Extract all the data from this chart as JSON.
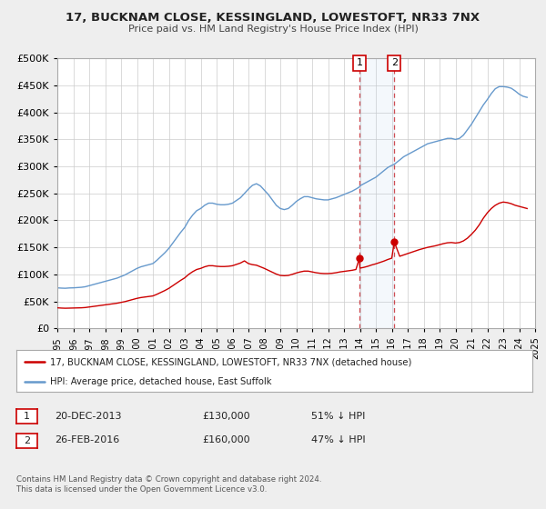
{
  "title": "17, BUCKNAM CLOSE, KESSINGLAND, LOWESTOFT, NR33 7NX",
  "subtitle": "Price paid vs. HM Land Registry's House Price Index (HPI)",
  "legend_line1": "17, BUCKNAM CLOSE, KESSINGLAND, LOWESTOFT, NR33 7NX (detached house)",
  "legend_line2": "HPI: Average price, detached house, East Suffolk",
  "sale1_date": "20-DEC-2013",
  "sale1_price": "£130,000",
  "sale1_hpi": "51% ↓ HPI",
  "sale1_x": 2013.97,
  "sale1_y_red": 130000,
  "sale2_date": "26-FEB-2016",
  "sale2_price": "£160,000",
  "sale2_hpi": "47% ↓ HPI",
  "sale2_x": 2016.16,
  "sale2_y_red": 160000,
  "xlim": [
    1995,
    2025
  ],
  "ylim": [
    0,
    500000
  ],
  "yticks": [
    0,
    50000,
    100000,
    150000,
    200000,
    250000,
    300000,
    350000,
    400000,
    450000,
    500000
  ],
  "xticks": [
    1995,
    1996,
    1997,
    1998,
    1999,
    2000,
    2001,
    2002,
    2003,
    2004,
    2005,
    2006,
    2007,
    2008,
    2009,
    2010,
    2011,
    2012,
    2013,
    2014,
    2015,
    2016,
    2017,
    2018,
    2019,
    2020,
    2021,
    2022,
    2023,
    2024,
    2025
  ],
  "red_color": "#cc0000",
  "blue_color": "#6699cc",
  "shade_color": "#aaccee",
  "background_color": "#eeeeee",
  "plot_bg_color": "#ffffff",
  "grid_color": "#cccccc",
  "border_color": "#aaaaaa",
  "copyright_text": "Contains HM Land Registry data © Crown copyright and database right 2024.\nThis data is licensed under the Open Government Licence v3.0.",
  "hpi_blue": [
    [
      1995.0,
      75000
    ],
    [
      1995.25,
      74500
    ],
    [
      1995.5,
      74200
    ],
    [
      1995.75,
      74800
    ],
    [
      1996.0,
      75000
    ],
    [
      1996.25,
      75500
    ],
    [
      1996.5,
      76000
    ],
    [
      1996.75,
      77000
    ],
    [
      1997.0,
      79000
    ],
    [
      1997.25,
      81000
    ],
    [
      1997.5,
      83000
    ],
    [
      1997.75,
      85000
    ],
    [
      1998.0,
      87000
    ],
    [
      1998.25,
      89000
    ],
    [
      1998.5,
      91000
    ],
    [
      1998.75,
      93000
    ],
    [
      1999.0,
      96000
    ],
    [
      1999.25,
      99000
    ],
    [
      1999.5,
      103000
    ],
    [
      1999.75,
      107000
    ],
    [
      2000.0,
      111000
    ],
    [
      2000.25,
      114000
    ],
    [
      2000.5,
      116000
    ],
    [
      2000.75,
      118000
    ],
    [
      2001.0,
      120000
    ],
    [
      2001.25,
      126000
    ],
    [
      2001.5,
      133000
    ],
    [
      2001.75,
      140000
    ],
    [
      2002.0,
      148000
    ],
    [
      2002.25,
      158000
    ],
    [
      2002.5,
      168000
    ],
    [
      2002.75,
      178000
    ],
    [
      2003.0,
      187000
    ],
    [
      2003.25,
      200000
    ],
    [
      2003.5,
      210000
    ],
    [
      2003.75,
      218000
    ],
    [
      2004.0,
      222000
    ],
    [
      2004.25,
      228000
    ],
    [
      2004.5,
      232000
    ],
    [
      2004.75,
      232000
    ],
    [
      2005.0,
      230000
    ],
    [
      2005.25,
      229000
    ],
    [
      2005.5,
      229000
    ],
    [
      2005.75,
      230000
    ],
    [
      2006.0,
      232000
    ],
    [
      2006.25,
      237000
    ],
    [
      2006.5,
      242000
    ],
    [
      2006.75,
      250000
    ],
    [
      2007.0,
      258000
    ],
    [
      2007.25,
      265000
    ],
    [
      2007.5,
      268000
    ],
    [
      2007.75,
      264000
    ],
    [
      2008.0,
      256000
    ],
    [
      2008.25,
      248000
    ],
    [
      2008.5,
      238000
    ],
    [
      2008.75,
      228000
    ],
    [
      2009.0,
      222000
    ],
    [
      2009.25,
      220000
    ],
    [
      2009.5,
      222000
    ],
    [
      2009.75,
      228000
    ],
    [
      2010.0,
      235000
    ],
    [
      2010.25,
      240000
    ],
    [
      2010.5,
      244000
    ],
    [
      2010.75,
      244000
    ],
    [
      2011.0,
      242000
    ],
    [
      2011.25,
      240000
    ],
    [
      2011.5,
      239000
    ],
    [
      2011.75,
      238000
    ],
    [
      2012.0,
      238000
    ],
    [
      2012.25,
      240000
    ],
    [
      2012.5,
      242000
    ],
    [
      2012.75,
      245000
    ],
    [
      2013.0,
      248000
    ],
    [
      2013.25,
      251000
    ],
    [
      2013.5,
      254000
    ],
    [
      2013.75,
      258000
    ],
    [
      2013.97,
      262000
    ],
    [
      2014.0,
      264000
    ],
    [
      2014.25,
      268000
    ],
    [
      2014.5,
      272000
    ],
    [
      2014.75,
      276000
    ],
    [
      2015.0,
      280000
    ],
    [
      2015.25,
      286000
    ],
    [
      2015.5,
      292000
    ],
    [
      2015.75,
      298000
    ],
    [
      2016.0,
      302000
    ],
    [
      2016.16,
      304000
    ],
    [
      2016.5,
      312000
    ],
    [
      2016.75,
      318000
    ],
    [
      2017.0,
      322000
    ],
    [
      2017.25,
      326000
    ],
    [
      2017.5,
      330000
    ],
    [
      2017.75,
      334000
    ],
    [
      2018.0,
      338000
    ],
    [
      2018.25,
      342000
    ],
    [
      2018.5,
      344000
    ],
    [
      2018.75,
      346000
    ],
    [
      2019.0,
      348000
    ],
    [
      2019.25,
      350000
    ],
    [
      2019.5,
      352000
    ],
    [
      2019.75,
      352000
    ],
    [
      2020.0,
      350000
    ],
    [
      2020.25,
      352000
    ],
    [
      2020.5,
      358000
    ],
    [
      2020.75,
      368000
    ],
    [
      2021.0,
      378000
    ],
    [
      2021.25,
      390000
    ],
    [
      2021.5,
      402000
    ],
    [
      2021.75,
      414000
    ],
    [
      2022.0,
      424000
    ],
    [
      2022.25,
      435000
    ],
    [
      2022.5,
      444000
    ],
    [
      2022.75,
      448000
    ],
    [
      2023.0,
      448000
    ],
    [
      2023.25,
      447000
    ],
    [
      2023.5,
      445000
    ],
    [
      2023.75,
      440000
    ],
    [
      2024.0,
      434000
    ],
    [
      2024.25,
      430000
    ],
    [
      2024.5,
      428000
    ]
  ],
  "red_hpi": [
    [
      1995.0,
      38000
    ],
    [
      1995.25,
      37500
    ],
    [
      1995.5,
      37200
    ],
    [
      1995.75,
      37400
    ],
    [
      1996.0,
      37600
    ],
    [
      1996.25,
      37800
    ],
    [
      1996.5,
      38000
    ],
    [
      1996.75,
      38500
    ],
    [
      1997.0,
      39500
    ],
    [
      1997.25,
      40500
    ],
    [
      1997.5,
      41500
    ],
    [
      1997.75,
      42500
    ],
    [
      1998.0,
      43500
    ],
    [
      1998.25,
      44500
    ],
    [
      1998.5,
      45500
    ],
    [
      1998.75,
      46500
    ],
    [
      1999.0,
      48000
    ],
    [
      1999.25,
      49500
    ],
    [
      1999.5,
      51500
    ],
    [
      1999.75,
      53500
    ],
    [
      2000.0,
      55500
    ],
    [
      2000.25,
      57000
    ],
    [
      2000.5,
      58000
    ],
    [
      2000.75,
      59000
    ],
    [
      2001.0,
      60000
    ],
    [
      2001.25,
      63000
    ],
    [
      2001.5,
      66500
    ],
    [
      2001.75,
      70000
    ],
    [
      2002.0,
      74000
    ],
    [
      2002.25,
      79000
    ],
    [
      2002.5,
      84000
    ],
    [
      2002.75,
      89000
    ],
    [
      2003.0,
      93500
    ],
    [
      2003.25,
      100000
    ],
    [
      2003.5,
      105000
    ],
    [
      2003.75,
      109000
    ],
    [
      2004.0,
      111000
    ],
    [
      2004.25,
      114000
    ],
    [
      2004.5,
      116000
    ],
    [
      2004.75,
      116000
    ],
    [
      2005.0,
      115000
    ],
    [
      2005.25,
      114500
    ],
    [
      2005.5,
      114500
    ],
    [
      2005.75,
      115000
    ],
    [
      2006.0,
      116000
    ],
    [
      2006.25,
      118500
    ],
    [
      2006.5,
      121000
    ],
    [
      2006.75,
      125000
    ],
    [
      2007.0,
      120000
    ],
    [
      2007.25,
      118000
    ],
    [
      2007.5,
      117000
    ],
    [
      2007.75,
      114000
    ],
    [
      2008.0,
      111000
    ],
    [
      2008.25,
      107500
    ],
    [
      2008.5,
      104000
    ],
    [
      2008.75,
      100500
    ],
    [
      2009.0,
      98000
    ],
    [
      2009.25,
      97500
    ],
    [
      2009.5,
      98000
    ],
    [
      2009.75,
      100000
    ],
    [
      2010.0,
      102500
    ],
    [
      2010.25,
      104500
    ],
    [
      2010.5,
      106000
    ],
    [
      2010.75,
      106000
    ],
    [
      2011.0,
      104500
    ],
    [
      2011.25,
      103000
    ],
    [
      2011.5,
      102000
    ],
    [
      2011.75,
      101500
    ],
    [
      2012.0,
      101500
    ],
    [
      2012.25,
      102000
    ],
    [
      2012.5,
      103000
    ],
    [
      2012.75,
      104500
    ],
    [
      2013.0,
      105500
    ],
    [
      2013.25,
      106500
    ],
    [
      2013.5,
      107500
    ],
    [
      2013.75,
      109000
    ],
    [
      2013.97,
      130000
    ],
    [
      2014.0,
      111500
    ],
    [
      2014.25,
      113000
    ],
    [
      2014.5,
      115000
    ],
    [
      2014.75,
      117500
    ],
    [
      2015.0,
      119500
    ],
    [
      2015.25,
      122000
    ],
    [
      2015.5,
      124500
    ],
    [
      2015.75,
      127500
    ],
    [
      2016.0,
      130000
    ],
    [
      2016.16,
      160000
    ],
    [
      2016.5,
      133500
    ],
    [
      2016.75,
      136000
    ],
    [
      2017.0,
      138500
    ],
    [
      2017.25,
      141000
    ],
    [
      2017.5,
      143500
    ],
    [
      2017.75,
      146000
    ],
    [
      2018.0,
      148000
    ],
    [
      2018.25,
      150000
    ],
    [
      2018.5,
      151500
    ],
    [
      2018.75,
      153000
    ],
    [
      2019.0,
      155000
    ],
    [
      2019.25,
      157000
    ],
    [
      2019.5,
      158500
    ],
    [
      2019.75,
      159000
    ],
    [
      2020.0,
      158000
    ],
    [
      2020.25,
      159000
    ],
    [
      2020.5,
      162000
    ],
    [
      2020.75,
      167000
    ],
    [
      2021.0,
      174000
    ],
    [
      2021.25,
      182000
    ],
    [
      2021.5,
      192000
    ],
    [
      2021.75,
      204000
    ],
    [
      2022.0,
      214000
    ],
    [
      2022.25,
      222000
    ],
    [
      2022.5,
      228000
    ],
    [
      2022.75,
      232000
    ],
    [
      2023.0,
      234000
    ],
    [
      2023.25,
      233000
    ],
    [
      2023.5,
      231000
    ],
    [
      2023.75,
      228000
    ],
    [
      2024.0,
      226000
    ],
    [
      2024.25,
      224000
    ],
    [
      2024.5,
      222000
    ]
  ]
}
